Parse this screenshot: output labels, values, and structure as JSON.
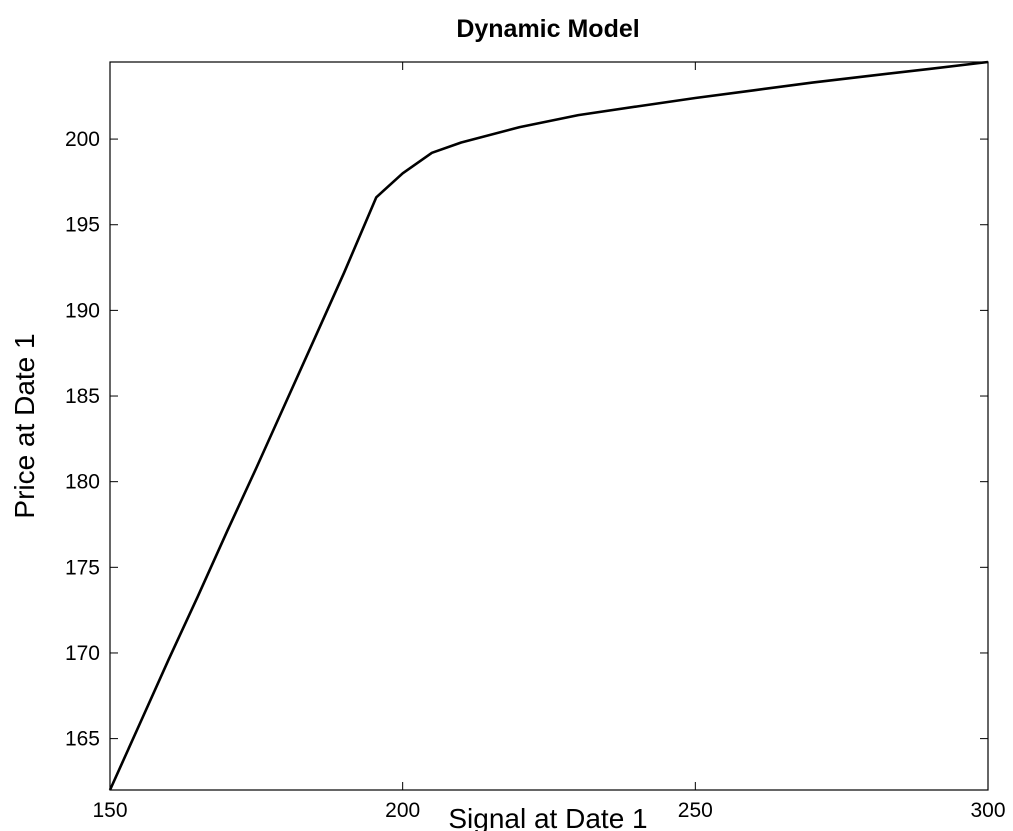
{
  "chart_data": {
    "type": "line",
    "title": "Dynamic Model",
    "xlabel": "Signal at Date 1",
    "ylabel": "Price at Date 1",
    "xlim": [
      150,
      300
    ],
    "ylim": [
      162,
      204.5
    ],
    "xticks": [
      150,
      200,
      250,
      300
    ],
    "yticks": [
      165,
      170,
      175,
      180,
      185,
      190,
      195,
      200
    ],
    "grid": false,
    "series": [
      {
        "color": "#000000",
        "x": [
          150,
          155,
          160,
          165,
          170,
          175,
          180,
          185,
          190,
          195.5,
          200,
          205,
          210,
          220,
          230,
          240,
          250,
          260,
          270,
          280,
          290,
          300
        ],
        "y": [
          162.0,
          165.8,
          169.6,
          173.3,
          177.1,
          180.8,
          184.6,
          188.4,
          192.2,
          196.6,
          198.0,
          199.2,
          199.8,
          200.7,
          201.4,
          201.9,
          202.4,
          202.85,
          203.3,
          203.7,
          204.1,
          204.5
        ]
      }
    ]
  }
}
